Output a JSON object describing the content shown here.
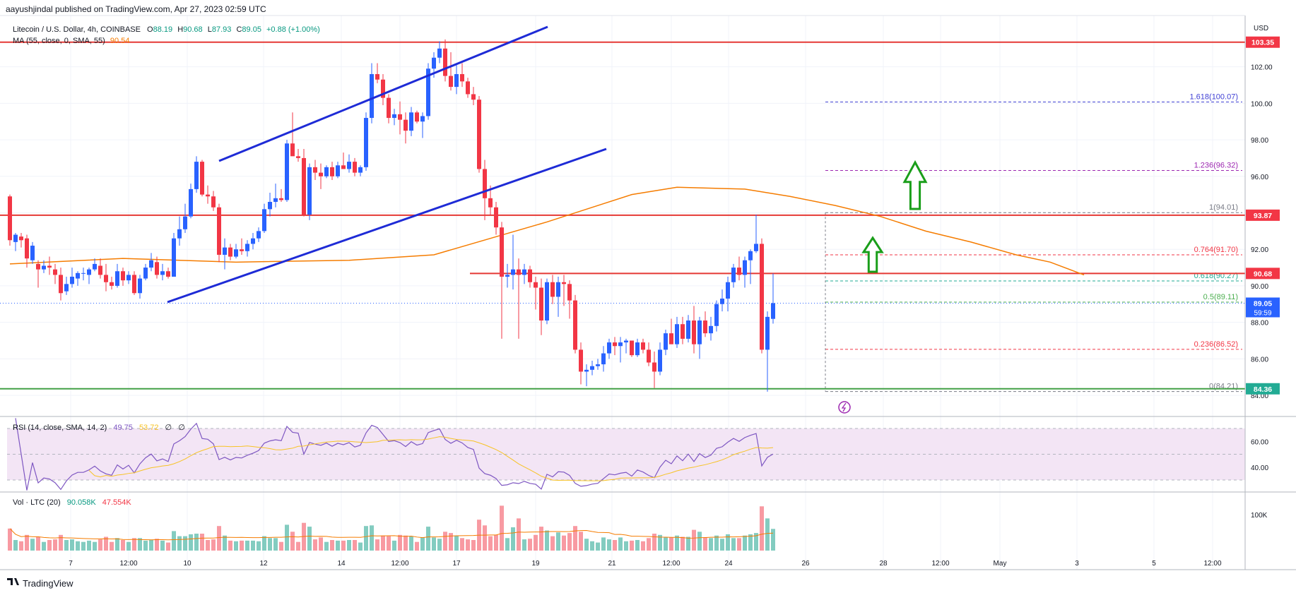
{
  "header": {
    "publisher": "aayushjindal published on TradingView.com, Apr 27, 2023 02:59 UTC"
  },
  "legend": {
    "symbol": "Litecoin / U.S. Dollar, 4h, COINBASE",
    "o_label": "O",
    "o": "88.19",
    "h_label": "H",
    "h": "90.68",
    "l_label": "L",
    "l": "87.93",
    "c_label": "C",
    "c": "89.05",
    "change": "+0.88 (+1.00%)",
    "ma_label": "MA (55, close, 0, SMA, 55)",
    "ma_value": "90.54"
  },
  "price_axis": {
    "currency": "USD",
    "ticks": [
      "102.00",
      "100.00",
      "98.00",
      "96.00",
      "94.00",
      "92.00",
      "90.00",
      "88.00",
      "86.00",
      "84.00"
    ],
    "tags": [
      {
        "text": "103.35",
        "color": "#f23645",
        "value": 103.35
      },
      {
        "text": "93.87",
        "color": "#f23645",
        "value": 93.87
      },
      {
        "text": "90.68",
        "color": "#f23645",
        "value": 90.68
      },
      {
        "text": "89.05",
        "sub": "59:59",
        "color": "#2962ff",
        "value": 89.05
      },
      {
        "text": "84.36",
        "color": "#22ab94",
        "value": 84.36
      }
    ]
  },
  "time_axis": {
    "labels": [
      "7",
      "12:00",
      "10",
      "12",
      "14",
      "12:00",
      "17",
      "19",
      "21",
      "12:00",
      "24",
      "26",
      "28",
      "12:00",
      "May",
      "3",
      "5",
      "12:00"
    ]
  },
  "fib_levels": [
    {
      "ratio": "1.618",
      "price": 100.07,
      "label": "1.618(100.07)",
      "color": "#3f3fd4"
    },
    {
      "ratio": "1.236",
      "price": 96.32,
      "label": "1.236(96.32)",
      "color": "#9c27b0"
    },
    {
      "ratio": "1",
      "price": 94.01,
      "label": "1(94.01)",
      "color": "#787b86"
    },
    {
      "ratio": "0.764",
      "price": 91.7,
      "label": "0.764(91.70)",
      "color": "#f23645"
    },
    {
      "ratio": "0.618",
      "price": 90.27,
      "label": "0.618(90.27)",
      "color": "#22ab94"
    },
    {
      "ratio": "0.5",
      "price": 89.11,
      "label": "0.5(89.11)",
      "color": "#4caf50"
    },
    {
      "ratio": "0.236",
      "price": 86.52,
      "label": "0.236(86.52)",
      "color": "#f23645"
    },
    {
      "ratio": "0",
      "price": 84.21,
      "label": "0(84.21)",
      "color": "#787b86"
    }
  ],
  "rsi": {
    "label": "RSI (14, close, SMA, 14, 2)",
    "value": "49.75",
    "sma": "53.72",
    "extra1": "∅",
    "extra2": "∅",
    "ticks": [
      "60.00",
      "40.00"
    ]
  },
  "volume": {
    "label": "Vol · LTC (20)",
    "value": "90.058K",
    "ma": "47.554K",
    "ticks": [
      "100K"
    ]
  },
  "footer": {
    "brand": "TradingView"
  },
  "colors": {
    "up": "#2962ff",
    "down": "#f23645",
    "ma": "#f57c00",
    "resistance": "#e53935",
    "support": "#43a047",
    "channel": "#1e2bd6",
    "arrow": "#1a9e1a",
    "rsi_line": "#7e57c2",
    "rsi_band": "#f3e5f5"
  },
  "chart_data": {
    "type": "candlestick",
    "title": "Litecoin / U.S. Dollar, 4h, COINBASE",
    "xlabel": "",
    "ylabel": "USD",
    "ylim": [
      83.5,
      104.5
    ],
    "x_ticks": [
      "7",
      "12:00",
      "10",
      "12",
      "14",
      "12:00",
      "17",
      "19",
      "21",
      "12:00",
      "24",
      "26",
      "28",
      "12:00",
      "May",
      "3",
      "5",
      "12:00"
    ],
    "ohlc": [
      [
        94.9,
        95.0,
        92.2,
        92.5
      ],
      [
        92.4,
        92.9,
        91.9,
        92.8
      ],
      [
        92.7,
        92.9,
        92.1,
        92.5
      ],
      [
        92.6,
        92.8,
        91.0,
        91.5
      ],
      [
        91.4,
        92.4,
        91.2,
        92.2
      ],
      [
        91.2,
        91.4,
        89.9,
        90.9
      ],
      [
        90.9,
        91.4,
        90.7,
        91.1
      ],
      [
        91.1,
        91.6,
        90.6,
        91.0
      ],
      [
        90.9,
        91.2,
        90.1,
        90.6
      ],
      [
        90.6,
        91.0,
        89.2,
        89.6
      ],
      [
        89.7,
        90.5,
        89.5,
        90.1
      ],
      [
        90.1,
        91.0,
        89.9,
        90.5
      ],
      [
        90.4,
        90.8,
        90.0,
        90.7
      ],
      [
        90.7,
        91.0,
        90.3,
        90.7
      ],
      [
        90.6,
        91.0,
        90.1,
        90.9
      ],
      [
        90.9,
        91.5,
        90.8,
        91.2
      ],
      [
        91.1,
        91.5,
        90.4,
        90.6
      ],
      [
        90.6,
        91.2,
        89.7,
        90.2
      ],
      [
        90.2,
        90.5,
        89.8,
        90.0
      ],
      [
        90.0,
        91.2,
        89.9,
        90.8
      ],
      [
        90.8,
        91.0,
        90.0,
        90.3
      ],
      [
        90.3,
        90.8,
        90.1,
        90.6
      ],
      [
        90.6,
        90.8,
        89.5,
        89.6
      ],
      [
        89.6,
        90.6,
        89.3,
        90.4
      ],
      [
        90.4,
        91.2,
        90.3,
        91.0
      ],
      [
        91.0,
        91.8,
        90.8,
        91.4
      ],
      [
        91.3,
        91.6,
        90.4,
        90.6
      ],
      [
        90.6,
        91.2,
        90.3,
        90.8
      ],
      [
        90.8,
        91.0,
        90.4,
        90.5
      ],
      [
        90.5,
        92.9,
        90.5,
        92.6
      ],
      [
        92.6,
        93.8,
        92.2,
        93.1
      ],
      [
        93.1,
        94.5,
        92.9,
        93.8
      ],
      [
        93.8,
        95.6,
        93.7,
        95.3
      ],
      [
        95.3,
        97.1,
        95.1,
        96.8
      ],
      [
        96.8,
        96.9,
        94.9,
        95.0
      ],
      [
        95.0,
        95.5,
        94.5,
        94.9
      ],
      [
        94.9,
        95.2,
        94.1,
        94.3
      ],
      [
        94.3,
        94.5,
        91.3,
        91.7
      ],
      [
        91.7,
        92.6,
        90.9,
        92.1
      ],
      [
        92.1,
        92.3,
        91.4,
        91.6
      ],
      [
        91.6,
        92.3,
        91.5,
        92.0
      ],
      [
        92.0,
        92.6,
        91.7,
        91.9
      ],
      [
        91.9,
        92.5,
        91.6,
        92.3
      ],
      [
        92.3,
        92.9,
        92.0,
        92.6
      ],
      [
        92.6,
        93.2,
        92.4,
        93.0
      ],
      [
        93.0,
        94.5,
        92.9,
        94.2
      ],
      [
        94.2,
        95.1,
        93.8,
        94.6
      ],
      [
        94.6,
        95.6,
        94.3,
        94.8
      ],
      [
        94.8,
        95.3,
        94.6,
        94.7
      ],
      [
        94.7,
        98.0,
        94.6,
        97.8
      ],
      [
        97.8,
        99.5,
        97.2,
        97.1
      ],
      [
        97.1,
        97.5,
        96.8,
        97.0
      ],
      [
        97.0,
        97.5,
        93.8,
        93.9
      ],
      [
        93.9,
        96.7,
        93.6,
        96.5
      ],
      [
        96.5,
        96.9,
        95.8,
        96.2
      ],
      [
        96.2,
        96.7,
        95.3,
        96.0
      ],
      [
        96.0,
        96.6,
        95.9,
        96.5
      ],
      [
        96.5,
        96.8,
        95.8,
        96.0
      ],
      [
        96.0,
        96.8,
        95.9,
        96.6
      ],
      [
        96.6,
        97.3,
        96.4,
        96.4
      ],
      [
        96.4,
        97.2,
        96.2,
        96.8
      ],
      [
        96.8,
        97.0,
        96.0,
        96.2
      ],
      [
        96.2,
        96.6,
        96.0,
        96.5
      ],
      [
        96.5,
        99.5,
        96.3,
        99.2
      ],
      [
        99.2,
        102.2,
        98.9,
        101.6
      ],
      [
        101.6,
        102.2,
        101.1,
        101.3
      ],
      [
        101.3,
        101.6,
        99.9,
        100.3
      ],
      [
        100.3,
        100.5,
        98.9,
        99.2
      ],
      [
        99.2,
        99.7,
        98.8,
        99.4
      ],
      [
        99.4,
        100.1,
        98.3,
        99.1
      ],
      [
        99.1,
        99.5,
        97.8,
        98.5
      ],
      [
        98.5,
        99.8,
        98.2,
        99.5
      ],
      [
        99.5,
        99.6,
        98.9,
        99.0
      ],
      [
        99.0,
        99.5,
        98.1,
        99.3
      ],
      [
        99.3,
        102.2,
        99.1,
        101.9
      ],
      [
        101.9,
        102.8,
        101.4,
        102.5
      ],
      [
        102.5,
        103.4,
        102.2,
        103.0
      ],
      [
        103.0,
        103.5,
        101.2,
        101.5
      ],
      [
        101.5,
        102.8,
        100.7,
        100.9
      ],
      [
        100.9,
        102.2,
        100.5,
        101.6
      ],
      [
        101.6,
        102.2,
        100.9,
        101.2
      ],
      [
        101.2,
        101.4,
        100.3,
        100.5
      ],
      [
        100.5,
        100.9,
        99.9,
        100.2
      ],
      [
        100.2,
        100.4,
        96.2,
        96.4
      ],
      [
        96.4,
        96.9,
        93.6,
        94.8
      ],
      [
        94.8,
        95.5,
        93.9,
        94.3
      ],
      [
        94.3,
        94.6,
        92.8,
        93.2
      ],
      [
        93.2,
        93.5,
        87.1,
        90.5
      ],
      [
        90.5,
        91.2,
        89.9,
        90.6
      ],
      [
        90.6,
        92.8,
        89.8,
        90.9
      ],
      [
        90.9,
        91.5,
        87.1,
        90.6
      ],
      [
        90.6,
        91.2,
        90.1,
        90.9
      ],
      [
        90.9,
        91.1,
        89.9,
        90.2
      ],
      [
        90.2,
        90.5,
        88.7,
        89.9
      ],
      [
        89.9,
        90.4,
        87.3,
        88.1
      ],
      [
        88.1,
        90.4,
        87.9,
        90.2
      ],
      [
        90.2,
        90.6,
        89.0,
        89.4
      ],
      [
        89.4,
        90.5,
        88.3,
        90.2
      ],
      [
        90.2,
        90.6,
        88.9,
        90.1
      ],
      [
        90.1,
        90.3,
        88.2,
        89.2
      ],
      [
        89.2,
        89.5,
        86.3,
        86.5
      ],
      [
        86.5,
        86.9,
        84.6,
        85.3
      ],
      [
        85.3,
        85.7,
        84.5,
        85.4
      ],
      [
        85.4,
        85.9,
        85.1,
        85.6
      ],
      [
        85.6,
        86.0,
        85.4,
        85.7
      ],
      [
        85.7,
        86.7,
        85.3,
        86.3
      ],
      [
        86.3,
        87.1,
        86.0,
        86.9
      ],
      [
        86.9,
        87.2,
        86.2,
        86.7
      ],
      [
        86.7,
        87.2,
        85.8,
        86.9
      ],
      [
        86.9,
        87.1,
        86.3,
        87.0
      ],
      [
        87.0,
        87.0,
        86.1,
        86.2
      ],
      [
        86.2,
        87.1,
        86.1,
        86.9
      ],
      [
        86.9,
        87.1,
        86.3,
        86.5
      ],
      [
        86.5,
        86.9,
        85.6,
        85.8
      ],
      [
        85.8,
        86.4,
        84.4,
        85.3
      ],
      [
        85.3,
        86.9,
        85.1,
        86.5
      ],
      [
        86.5,
        87.6,
        86.2,
        87.4
      ],
      [
        87.4,
        88.2,
        86.8,
        86.8
      ],
      [
        86.8,
        88.3,
        86.6,
        87.9
      ],
      [
        87.9,
        88.3,
        86.8,
        87.1
      ],
      [
        87.1,
        88.4,
        86.9,
        88.1
      ],
      [
        88.1,
        88.9,
        86.3,
        86.8
      ],
      [
        86.8,
        88.3,
        86.0,
        88.1
      ],
      [
        88.1,
        88.6,
        87.2,
        87.4
      ],
      [
        87.4,
        88.3,
        87.0,
        87.8
      ],
      [
        87.8,
        89.2,
        87.5,
        89.0
      ],
      [
        89.0,
        89.8,
        88.6,
        89.3
      ],
      [
        89.3,
        90.5,
        88.6,
        90.2
      ],
      [
        90.2,
        91.2,
        89.9,
        91.0
      ],
      [
        91.0,
        91.6,
        90.3,
        90.6
      ],
      [
        90.6,
        91.6,
        89.9,
        91.4
      ],
      [
        91.4,
        92.0,
        90.1,
        91.9
      ],
      [
        91.9,
        93.9,
        91.8,
        92.3
      ],
      [
        92.3,
        92.6,
        86.3,
        86.5
      ],
      [
        86.5,
        88.6,
        84.2,
        88.3
      ],
      [
        88.19,
        90.68,
        87.93,
        89.05
      ]
    ],
    "volume": [],
    "ma55_points": [
      [
        0,
        91.2
      ],
      [
        20,
        91.5
      ],
      [
        40,
        91.3
      ],
      [
        60,
        91.4
      ],
      [
        75,
        91.7
      ],
      [
        85,
        92.6
      ],
      [
        95,
        93.5
      ],
      [
        105,
        94.5
      ],
      [
        110,
        95.0
      ],
      [
        118,
        95.4
      ],
      [
        130,
        95.3
      ],
      [
        138,
        94.9
      ],
      [
        146,
        94.4
      ],
      [
        154,
        93.8
      ],
      [
        162,
        93.0
      ],
      [
        170,
        92.4
      ],
      [
        178,
        91.7
      ],
      [
        184,
        91.3
      ],
      [
        190,
        90.6
      ]
    ],
    "rsi_series": [],
    "annotations": {
      "resistance_lines": [
        103.35,
        93.87,
        90.68
      ],
      "support_line": 84.36
    }
  }
}
